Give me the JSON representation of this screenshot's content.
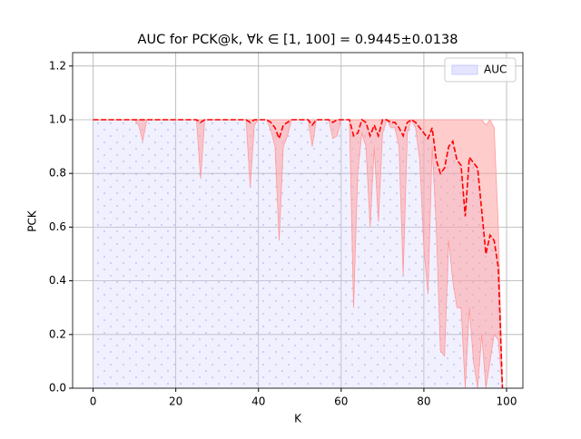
{
  "chart_data": {
    "type": "band-line",
    "title": "AUC for PCK@k, ∀k ∈ [1, 100] = 0.9445±0.0138",
    "xlabel": "K",
    "ylabel": "PCK",
    "legend": "AUC",
    "legend_loc": "upper right",
    "x": [
      0,
      1,
      2,
      3,
      4,
      5,
      6,
      7,
      8,
      9,
      10,
      11,
      12,
      13,
      14,
      15,
      16,
      17,
      18,
      19,
      20,
      21,
      22,
      23,
      24,
      25,
      26,
      27,
      28,
      29,
      30,
      31,
      32,
      33,
      34,
      35,
      36,
      37,
      38,
      39,
      40,
      41,
      42,
      43,
      44,
      45,
      46,
      47,
      48,
      49,
      50,
      51,
      52,
      53,
      54,
      55,
      56,
      57,
      58,
      59,
      60,
      61,
      62,
      63,
      64,
      65,
      66,
      67,
      68,
      69,
      70,
      71,
      72,
      73,
      74,
      75,
      76,
      77,
      78,
      79,
      80,
      81,
      82,
      83,
      84,
      85,
      86,
      87,
      88,
      89,
      90,
      91,
      92,
      93,
      94,
      95,
      96,
      97,
      98,
      99
    ],
    "values": [
      1,
      1,
      1,
      1,
      1,
      1,
      1,
      1,
      1,
      1,
      1,
      1,
      1,
      1,
      1,
      1,
      1,
      1,
      1,
      1,
      1,
      1,
      1,
      1,
      1,
      1,
      0.99,
      1,
      1,
      1,
      1,
      1,
      1,
      1,
      1,
      1,
      1,
      1,
      0.99,
      1,
      1,
      1,
      1,
      0.99,
      0.97,
      0.93,
      0.98,
      0.99,
      1,
      1,
      1,
      1,
      1,
      0.98,
      1,
      1,
      1,
      1,
      0.99,
      1,
      1,
      1,
      1,
      0.94,
      0.95,
      1,
      0.99,
      0.94,
      0.98,
      0.94,
      1,
      1,
      0.99,
      0.99,
      0.97,
      0.94,
      0.99,
      1,
      0.99,
      0.97,
      0.95,
      0.93,
      0.97,
      0.85,
      0.8,
      0.82,
      0.9,
      0.92,
      0.85,
      0.83,
      0.64,
      0.86,
      0.84,
      0.82,
      0.66,
      0.5,
      0.57,
      0.55,
      0.45,
      0
    ],
    "lower": [
      1,
      1,
      1,
      1,
      1,
      1,
      1,
      1,
      1,
      1,
      1,
      0.98,
      0.92,
      1,
      1,
      1,
      1,
      1,
      1,
      1,
      1,
      1,
      1,
      1,
      1,
      1,
      0.78,
      1,
      1,
      1,
      1,
      1,
      1,
      1,
      1,
      1,
      1,
      1,
      0.75,
      0.98,
      1,
      1,
      1,
      0.96,
      0.9,
      0.55,
      0.9,
      0.94,
      1,
      1,
      1,
      1,
      1,
      0.9,
      1,
      1,
      1,
      1,
      0.93,
      0.94,
      1,
      1,
      1,
      0.3,
      0.8,
      0.95,
      0.9,
      0.6,
      0.9,
      0.62,
      0.95,
      1,
      0.97,
      0.97,
      0.9,
      0.42,
      0.95,
      1,
      0.97,
      0.85,
      0.52,
      0.35,
      0.9,
      0.6,
      0.14,
      0.12,
      0.55,
      0.4,
      0.3,
      0.3,
      0,
      0.3,
      0.1,
      0,
      0.2,
      0,
      0.1,
      0.2,
      0.18,
      0
    ],
    "upper": [
      1,
      1,
      1,
      1,
      1,
      1,
      1,
      1,
      1,
      1,
      1,
      1,
      1,
      1,
      1,
      1,
      1,
      1,
      1,
      1,
      1,
      1,
      1,
      1,
      1,
      1,
      1,
      1,
      1,
      1,
      1,
      1,
      1,
      1,
      1,
      1,
      1,
      1,
      1,
      1,
      1,
      1,
      1,
      1,
      1,
      1,
      1,
      1,
      1,
      1,
      1,
      1,
      1,
      1,
      1,
      1,
      1,
      1,
      1,
      1,
      1,
      1,
      1,
      1,
      1,
      1,
      1,
      1,
      1,
      1,
      1,
      1,
      1,
      1,
      1,
      1,
      1,
      1,
      1,
      1,
      1,
      1,
      1,
      1,
      1,
      1,
      1,
      1,
      1,
      1,
      1,
      1,
      1,
      1,
      1,
      0.98,
      1,
      0.97,
      0.6,
      0
    ],
    "line_color": "#ff0000",
    "band_color": "#ff9999",
    "auc_color": "#ccccff",
    "xlim": [
      -4.95,
      103.95
    ],
    "ylim": [
      0,
      1.25
    ],
    "xticks": [
      0,
      20,
      40,
      60,
      80,
      100
    ],
    "yticks": [
      {
        "value": 0,
        "label": "0.0"
      },
      {
        "value": 0.2,
        "label": "0.2"
      },
      {
        "value": 0.4,
        "label": "0.4"
      },
      {
        "value": 0.6,
        "label": "0.6"
      },
      {
        "value": 0.8,
        "label": "0.8"
      },
      {
        "value": 1.0,
        "label": "1.0"
      },
      {
        "value": 1.2,
        "label": "1.2"
      }
    ],
    "grid": true
  }
}
